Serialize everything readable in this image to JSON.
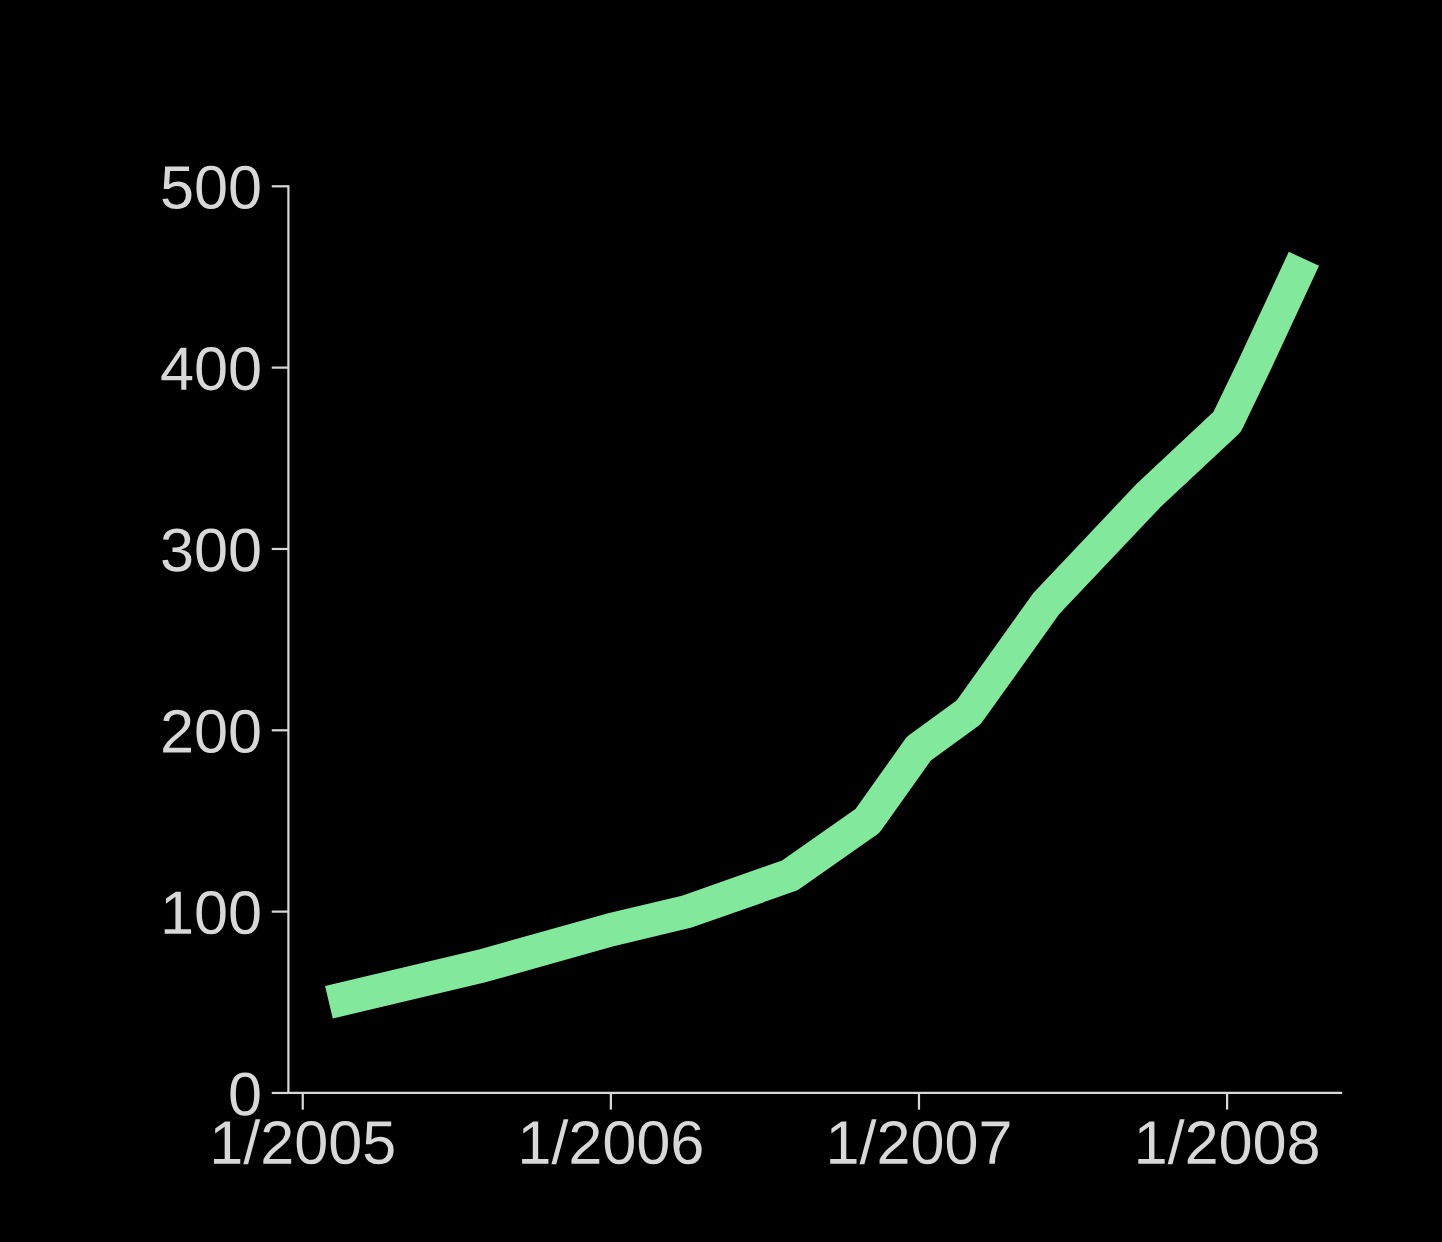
{
  "chart_data": {
    "type": "line",
    "x": [
      "2005-02",
      "2005-08",
      "2006-01",
      "2006-04",
      "2006-08",
      "2006-11",
      "2007-01",
      "2007-03",
      "2007-06",
      "2007-10",
      "2008-01",
      "2008-02",
      "2008-04"
    ],
    "series": [
      {
        "color": "#82e89c",
        "values": [
          50,
          70,
          90,
          100,
          120,
          150,
          190,
          210,
          270,
          330,
          370,
          400,
          460
        ]
      }
    ],
    "xlim": [
      "2004-12-15",
      "2008-05-15"
    ],
    "xticks": [
      {
        "value": "2005-01-01",
        "label": "1/2005"
      },
      {
        "value": "2006-01-01",
        "label": "1/2006"
      },
      {
        "value": "2007-01-01",
        "label": "1/2007"
      },
      {
        "value": "2008-01-01",
        "label": "1/2008"
      }
    ],
    "ylim": [
      0,
      500
    ],
    "yticks": [
      0,
      100,
      200,
      300,
      400,
      500
    ],
    "grid": false,
    "legend": false,
    "marker": "none",
    "line_style": "solid"
  }
}
